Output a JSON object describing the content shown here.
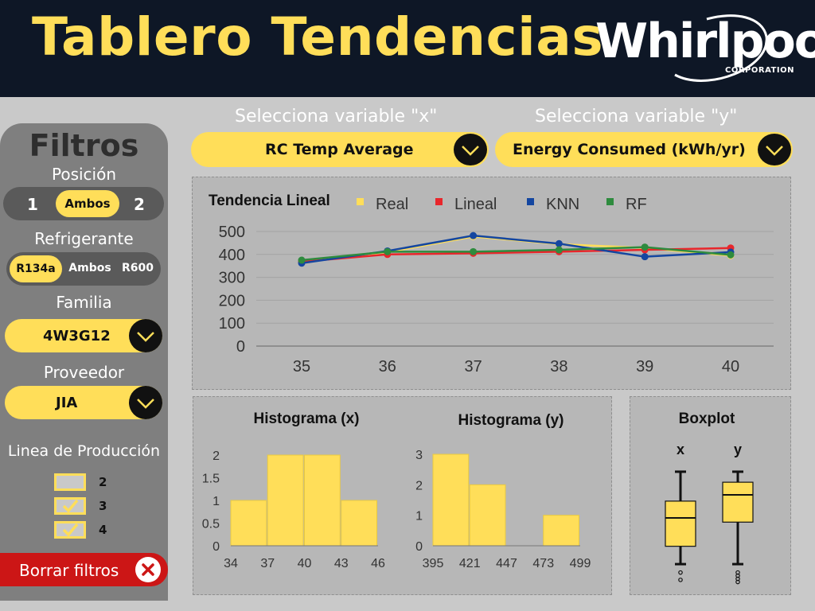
{
  "header": {
    "title": "Tablero Tendencias",
    "logo_text": "Whirlpool",
    "logo_sub": "CORPORATION"
  },
  "filters": {
    "title": "Filtros",
    "posicion": {
      "label": "Posición",
      "options": [
        "1",
        "Ambos",
        "2"
      ],
      "selected": "Ambos"
    },
    "refrigerante": {
      "label": "Refrigerante",
      "options": [
        "R134a",
        "Ambos",
        "R600"
      ],
      "selected": "R134a"
    },
    "familia": {
      "label": "Familia",
      "value": "4W3G12"
    },
    "proveedor": {
      "label": "Proveedor",
      "value": "JIA"
    },
    "linea": {
      "label": "Linea de Producción",
      "items": [
        {
          "label": "2",
          "checked": false
        },
        {
          "label": "3",
          "checked": true
        },
        {
          "label": "4",
          "checked": true
        }
      ]
    },
    "clear_label": "Borrar filtros"
  },
  "selectors": {
    "x_label": "Selecciona variable \"x\"",
    "x_value": "RC Temp Average",
    "y_label": "Selecciona variable \"y\"",
    "y_value": "Energy Consumed (kWh/yr)"
  },
  "colors": {
    "accent": "#ffde59",
    "real": "#ffde59",
    "lineal": "#e8262b",
    "knn": "#1446a0",
    "rf": "#2e8b3e",
    "header_bg": "#0e1726",
    "clear_button": "#cc1616"
  },
  "chart_data": [
    {
      "type": "line",
      "title": "Tendencia Lineal",
      "x": [
        35,
        36,
        37,
        38,
        39,
        40
      ],
      "ylim": [
        0,
        500
      ],
      "yticks": [
        0,
        100,
        200,
        300,
        400,
        500
      ],
      "legend": "top",
      "grid": true,
      "series": [
        {
          "name": "Real",
          "color": "#ffde59",
          "values": [
            370,
            410,
            478,
            445,
            428,
            395
          ]
        },
        {
          "name": "Lineal",
          "color": "#e8262b",
          "values": [
            368,
            400,
            405,
            412,
            420,
            428
          ]
        },
        {
          "name": "KNN",
          "color": "#1446a0",
          "values": [
            362,
            415,
            482,
            447,
            390,
            410
          ]
        },
        {
          "name": "RF",
          "color": "#2e8b3e",
          "values": [
            375,
            412,
            412,
            420,
            432,
            398
          ]
        }
      ]
    },
    {
      "type": "bar",
      "title": "Histograma (x)",
      "bin_edges": [
        34,
        37,
        40,
        43,
        46
      ],
      "values": [
        1,
        2,
        2,
        1
      ],
      "yticks": [
        "0",
        "0.5",
        "1",
        "1.5",
        "2"
      ],
      "ylim": [
        0,
        2
      ]
    },
    {
      "type": "bar",
      "title": "Histograma (y)",
      "bin_edges": [
        395,
        421,
        447,
        473,
        499
      ],
      "values": [
        3,
        2,
        0,
        1
      ],
      "yticks": [
        "0",
        "1",
        "2",
        "3"
      ],
      "ylim": [
        0,
        3
      ]
    },
    {
      "type": "boxplot",
      "title": "Boxplot",
      "categories": [
        "x",
        "y"
      ],
      "series": [
        {
          "name": "x",
          "whisker_low": 0.06,
          "q1": 0.23,
          "median": 0.5,
          "q3": 0.66,
          "whisker_high": 0.94,
          "outliers": [
            -0.02,
            -0.09
          ]
        },
        {
          "name": "y",
          "whisker_low": 0.06,
          "q1": 0.46,
          "median": 0.72,
          "q3": 0.84,
          "whisker_high": 0.94,
          "outliers": [
            -0.02,
            -0.05,
            -0.08,
            -0.11
          ]
        }
      ]
    }
  ]
}
